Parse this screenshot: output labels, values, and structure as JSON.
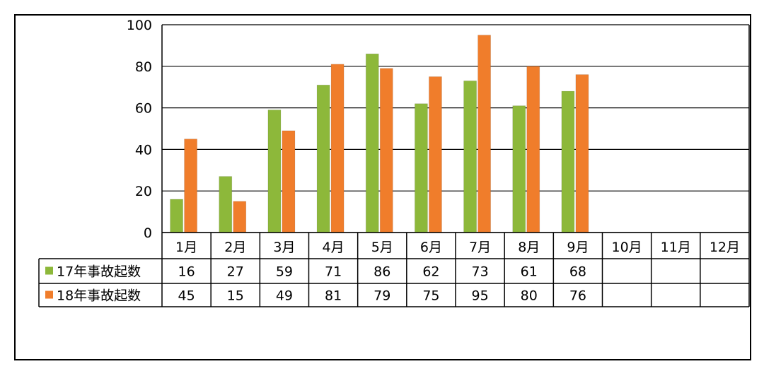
{
  "chart_data": {
    "type": "bar",
    "title": "",
    "xlabel": "",
    "ylabel": "",
    "ylim": [
      0,
      100
    ],
    "yticks": [
      0,
      20,
      40,
      60,
      80,
      100
    ],
    "grid": true,
    "legend": "data-table-left",
    "categories": [
      "1月",
      "2月",
      "3月",
      "4月",
      "5月",
      "6月",
      "7月",
      "8月",
      "9月",
      "10月",
      "11月",
      "12月"
    ],
    "series": [
      {
        "name": "17年事故起数",
        "color": "#8DB83A",
        "values": [
          16,
          27,
          59,
          71,
          86,
          62,
          73,
          61,
          68,
          null,
          null,
          null
        ]
      },
      {
        "name": "18年事故起数",
        "color": "#F07D2B",
        "values": [
          45,
          15,
          49,
          81,
          79,
          75,
          95,
          80,
          76,
          null,
          null,
          null
        ]
      }
    ]
  }
}
